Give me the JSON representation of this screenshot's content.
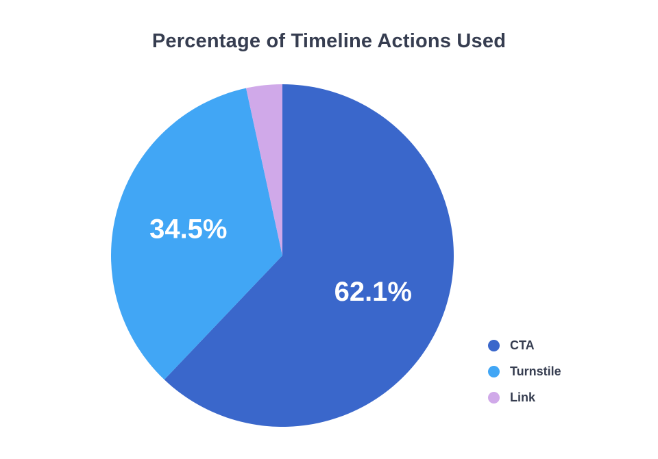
{
  "title": "Percentage of Timeline Actions Used",
  "chart_data": {
    "type": "pie",
    "title": "Percentage of Timeline Actions Used",
    "categories": [
      "CTA",
      "Turnstile",
      "Link"
    ],
    "values": [
      62.1,
      34.5,
      3.4
    ],
    "unit": "%",
    "colors": [
      "#3A67CB",
      "#41A6F5",
      "#D0A9E9"
    ],
    "slice_labels": [
      "62.1%",
      "34.5%",
      ""
    ],
    "slice_label_color": "#FFFFFF",
    "start_angle_deg": 0,
    "direction": "clockwise",
    "legend_position": "right",
    "legend_entries": [
      "CTA",
      "Turnstile",
      "Link"
    ]
  },
  "legend": {
    "items": [
      {
        "label": "CTA",
        "color": "#3A67CB"
      },
      {
        "label": "Turnstile",
        "color": "#41A6F5"
      },
      {
        "label": "Link",
        "color": "#D0A9E9"
      }
    ]
  },
  "styles": {
    "background": "#FFFFFF",
    "title_color": "#363D50",
    "legend_text_color": "#363D50"
  }
}
